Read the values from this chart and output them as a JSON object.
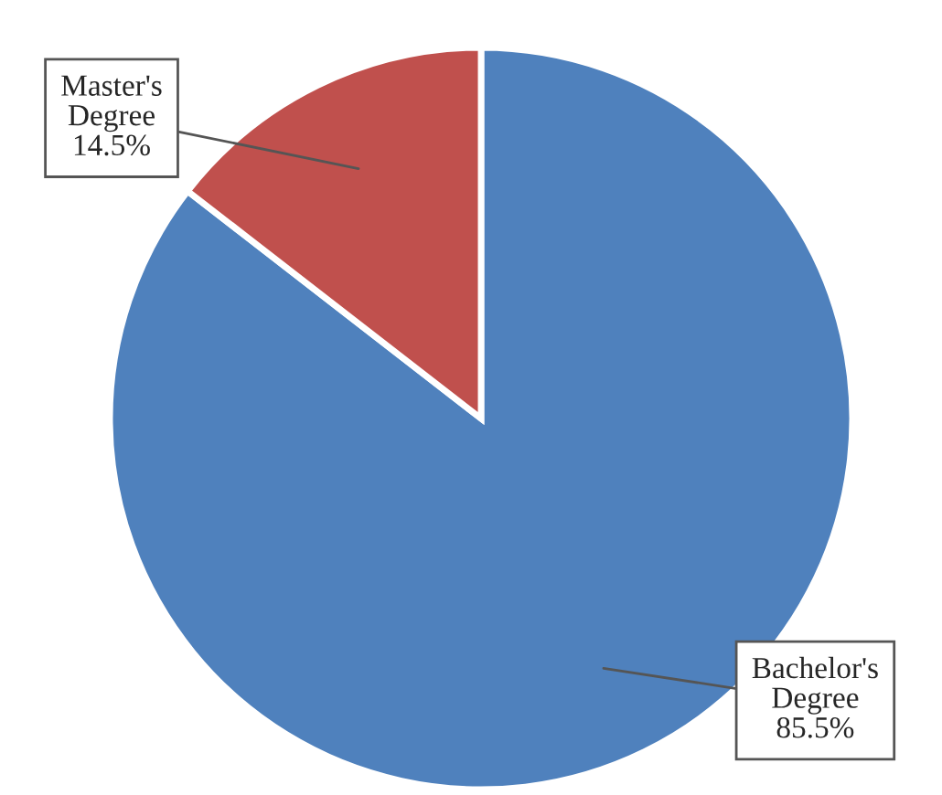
{
  "chart_data": {
    "type": "pie",
    "categories": [
      "Bachelor's Degree",
      "Master's Degree"
    ],
    "values": [
      85.5,
      14.5
    ],
    "colors": [
      "#4f81bd",
      "#c0504d"
    ],
    "value_labels": [
      "85.5%",
      "14.5%"
    ],
    "legend": false
  }
}
